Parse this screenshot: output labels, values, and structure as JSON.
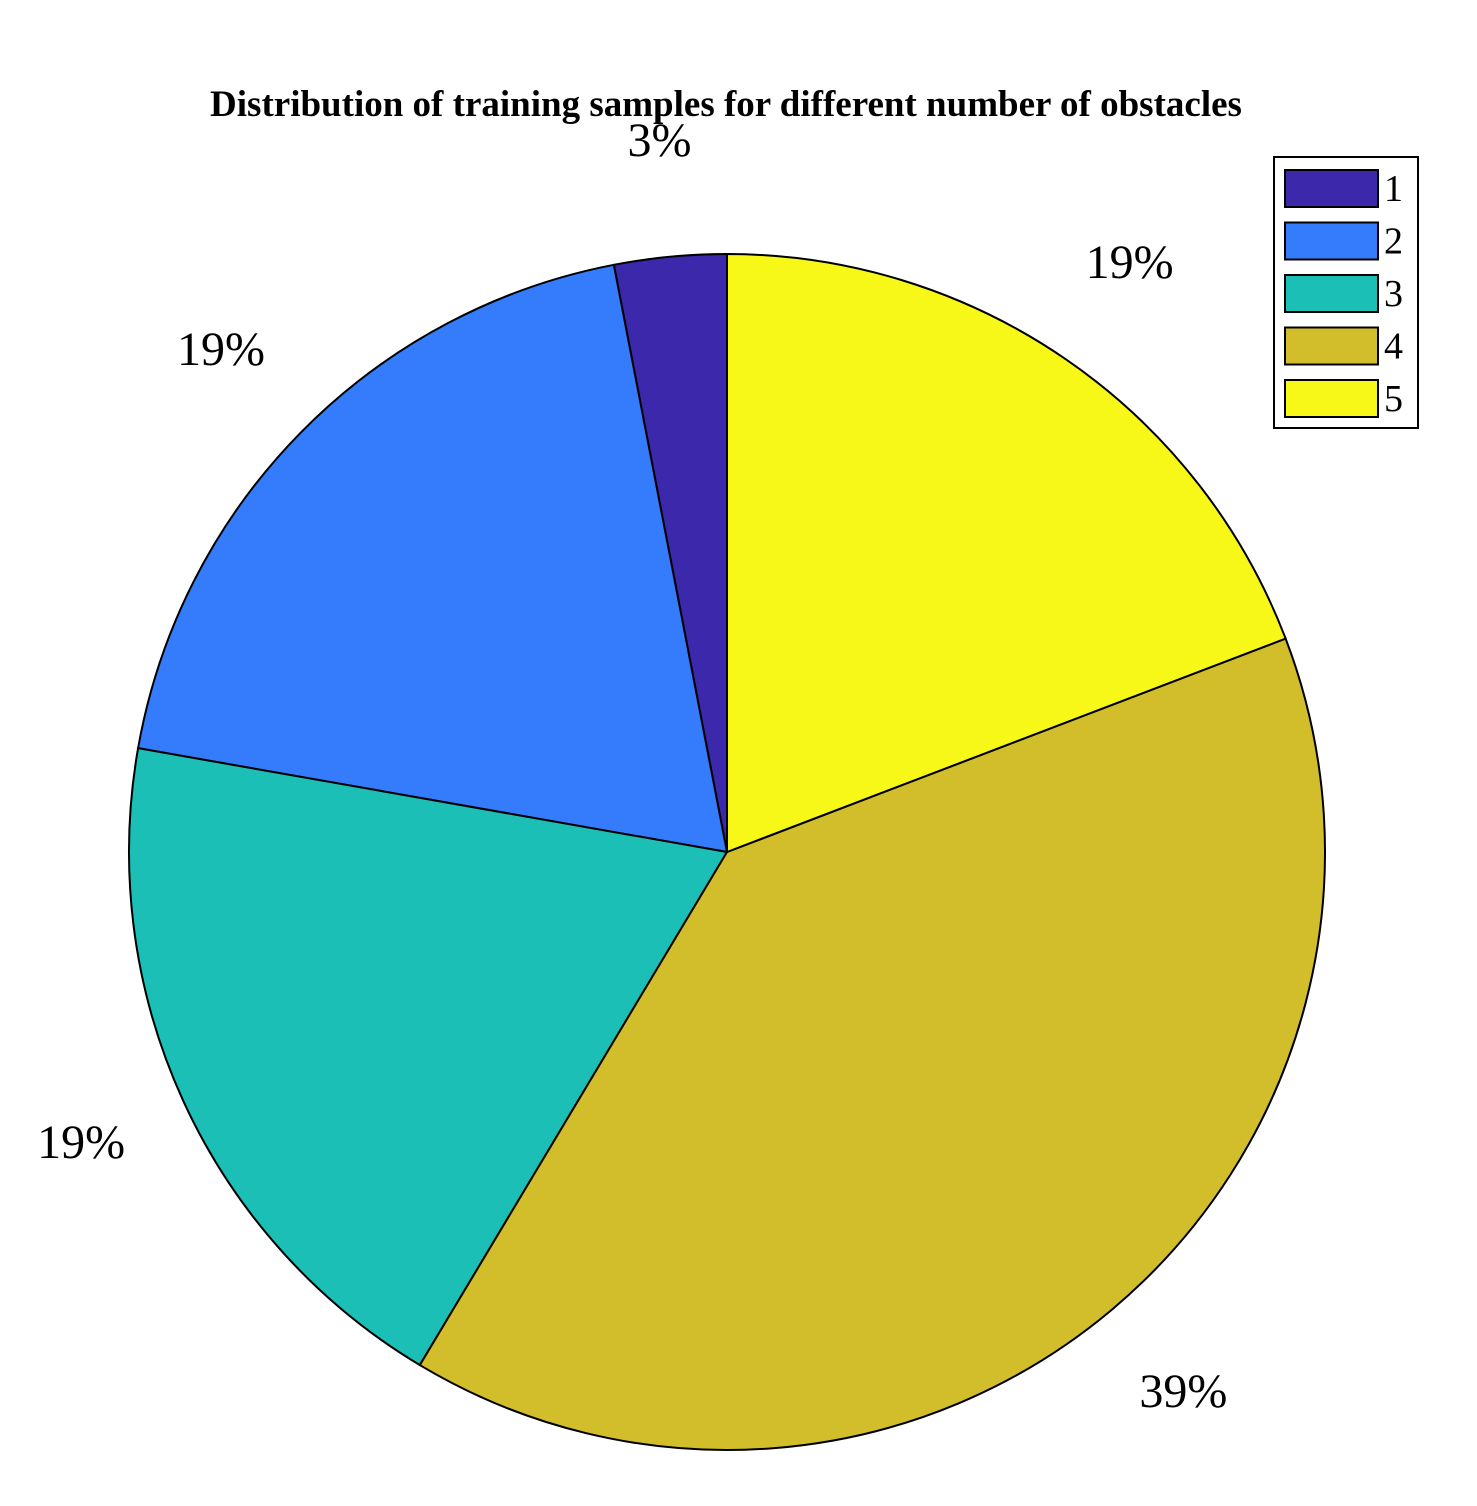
{
  "chart_data": {
    "type": "pie",
    "title": "Distribution of training samples for different number of obstacles",
    "categories": [
      "1",
      "2",
      "3",
      "4",
      "5"
    ],
    "values": [
      3,
      19,
      19,
      39,
      19
    ],
    "percent_labels": [
      "3%",
      "19%",
      "19%",
      "39%",
      "19%"
    ],
    "colors": [
      "#3b28aa",
      "#347cfb",
      "#1bbfb6",
      "#d2be2b",
      "#f7f718"
    ],
    "legend": {
      "placement": "top-right",
      "entries": [
        "1",
        "2",
        "3",
        "4",
        "5"
      ]
    }
  }
}
